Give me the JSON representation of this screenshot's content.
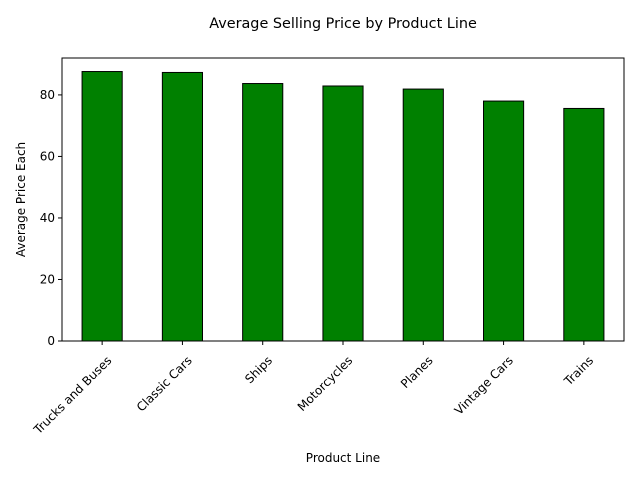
{
  "chart_data": {
    "type": "bar",
    "title": "Average Selling Price by Product Line",
    "xlabel": "Product Line",
    "ylabel": "Average Price Each",
    "categories": [
      "Trucks and Buses",
      "Classic Cars",
      "Ships",
      "Motorcycles",
      "Planes",
      "Vintage Cars",
      "Trains"
    ],
    "values": [
      87.6,
      87.3,
      83.7,
      82.9,
      81.9,
      78.0,
      75.6
    ],
    "ylim": [
      0,
      92
    ],
    "yticks": [
      0,
      20,
      40,
      60,
      80
    ],
    "bar_color": "#008000",
    "bar_edge_color": "#000000",
    "grid": false,
    "legend": "none"
  }
}
